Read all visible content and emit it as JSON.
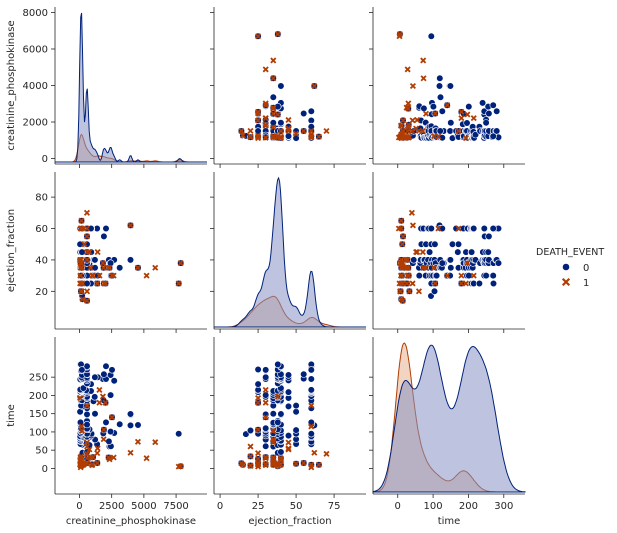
{
  "chart_data": {
    "type": "scatter",
    "subtype": "pairplot",
    "variables": [
      "creatinine_phosphokinase",
      "ejection_fraction",
      "time"
    ],
    "hue": {
      "title": "DEATH_EVENT",
      "levels": [
        {
          "label": "0",
          "marker": "circle",
          "color": "#00227a"
        },
        {
          "label": "1",
          "marker": "x",
          "color": "#b23d02"
        }
      ],
      "legend_position": "right"
    },
    "axes": {
      "creatinine_phosphokinase": {
        "label": "creatinine_phosphokinase",
        "range": [
          -1900,
          9900
        ],
        "ticks": [
          0,
          2500,
          5000,
          7500
        ],
        "diag_ticks": [
          0,
          2000,
          4000,
          6000,
          8000
        ]
      },
      "ejection_fraction": {
        "label": "ejection_fraction",
        "range": [
          -4,
          96
        ],
        "ticks": [
          0,
          25,
          50,
          75
        ],
        "row_ticks": [
          20,
          40,
          60,
          80
        ]
      },
      "time": {
        "label": "time",
        "range": [
          -70,
          360
        ],
        "ticks": [
          0,
          100,
          200,
          300
        ],
        "row_ticks": [
          0,
          50,
          100,
          150,
          200,
          250
        ]
      }
    },
    "grid": false,
    "points_0": [
      [
        582,
        38,
        130
      ],
      [
        7861,
        38,
        6
      ],
      [
        146,
        20,
        7
      ],
      [
        111,
        20,
        7
      ],
      [
        160,
        20,
        8
      ],
      [
        47,
        40,
        10
      ],
      [
        246,
        15,
        10
      ],
      [
        315,
        60,
        10
      ],
      [
        157,
        65,
        10
      ],
      [
        123,
        35,
        10
      ],
      [
        81,
        38,
        10
      ],
      [
        231,
        25,
        10
      ],
      [
        981,
        30,
        11
      ],
      [
        168,
        38,
        11
      ],
      [
        80,
        30,
        12
      ],
      [
        379,
        50,
        13
      ],
      [
        149,
        38,
        14
      ],
      [
        582,
        14,
        14
      ],
      [
        1380,
        25,
        15
      ],
      [
        582,
        55,
        15
      ],
      [
        95,
        35,
        16
      ],
      [
        128,
        35,
        20
      ],
      [
        64,
        40,
        22
      ],
      [
        122,
        40,
        23
      ],
      [
        130,
        25,
        26
      ],
      [
        582,
        40,
        28
      ],
      [
        855,
        35,
        30
      ],
      [
        2261,
        35,
        30
      ],
      [
        73,
        30,
        30
      ],
      [
        1051,
        30,
        31
      ],
      [
        130,
        20,
        33
      ],
      [
        235,
        38,
        43
      ],
      [
        582,
        40,
        45
      ],
      [
        2334,
        35,
        60
      ],
      [
        2442,
        30,
        61
      ],
      [
        776,
        38,
        64
      ],
      [
        196,
        40,
        65
      ],
      [
        1366,
        60,
        66
      ],
      [
        76,
        50,
        67
      ],
      [
        231,
        60,
        73
      ],
      [
        253,
        35,
        74
      ],
      [
        90,
        35,
        74
      ],
      [
        2281,
        40,
        74
      ],
      [
        68,
        40,
        76
      ],
      [
        1211,
        30,
        79
      ],
      [
        103,
        50,
        80
      ],
      [
        61,
        38,
        82
      ],
      [
        129,
        60,
        85
      ],
      [
        198,
        40,
        86
      ],
      [
        835,
        35,
        87
      ],
      [
        582,
        35,
        87
      ],
      [
        59,
        60,
        88
      ],
      [
        246,
        30,
        90
      ],
      [
        910,
        45,
        90
      ],
      [
        157,
        38,
        94
      ],
      [
        212,
        17,
        94
      ],
      [
        7702,
        25,
        95
      ],
      [
        582,
        50,
        95
      ],
      [
        930,
        60,
        95
      ],
      [
        582,
        30,
        95
      ],
      [
        130,
        35,
        96
      ],
      [
        1846,
        35,
        96
      ],
      [
        81,
        35,
        96
      ],
      [
        2695,
        40,
        97
      ],
      [
        166,
        30,
        100
      ],
      [
        2413,
        38,
        101
      ],
      [
        115,
        20,
        104
      ],
      [
        198,
        40,
        104
      ],
      [
        95,
        50,
        105
      ],
      [
        1896,
        25,
        106
      ],
      [
        776,
        38,
        107
      ],
      [
        582,
        30,
        107
      ],
      [
        104,
        35,
        108
      ],
      [
        582,
        35,
        109
      ],
      [
        128,
        30,
        110
      ],
      [
        3964,
        62,
        118
      ],
      [
        4540,
        35,
        119
      ],
      [
        582,
        40,
        120
      ],
      [
        3119,
        35,
        121
      ],
      [
        67,
        60,
        121
      ],
      [
        59,
        35,
        125
      ],
      [
        80,
        38,
        126
      ],
      [
        2060,
        60,
        126
      ],
      [
        2522,
        30,
        140
      ],
      [
        582,
        40,
        147
      ],
      [
        3966,
        40,
        147
      ],
      [
        582,
        30,
        148
      ],
      [
        3964,
        40,
        149
      ],
      [
        1202,
        35,
        150
      ],
      [
        47,
        50,
        155
      ],
      [
        582,
        60,
        165
      ],
      [
        249,
        45,
        170
      ],
      [
        130,
        35,
        172
      ],
      [
        582,
        50,
        172
      ],
      [
        2017,
        25,
        180
      ],
      [
        1088,
        40,
        184
      ],
      [
        582,
        38,
        185
      ],
      [
        118,
        60,
        186
      ],
      [
        582,
        40,
        186
      ],
      [
        1876,
        35,
        187
      ],
      [
        197,
        38,
        187
      ],
      [
        582,
        35,
        192
      ],
      [
        582,
        45,
        193
      ],
      [
        47,
        38,
        195
      ],
      [
        1185,
        40,
        196
      ],
      [
        582,
        30,
        196
      ],
      [
        148,
        38,
        197
      ],
      [
        60,
        60,
        198
      ],
      [
        220,
        35,
        201
      ],
      [
        2413,
        38,
        201
      ],
      [
        144,
        30,
        201
      ],
      [
        96,
        60,
        206
      ],
      [
        582,
        35,
        207
      ],
      [
        193,
        60,
        207
      ],
      [
        211,
        38,
        207
      ],
      [
        115,
        45,
        208
      ],
      [
        84,
        40,
        208
      ],
      [
        115,
        25,
        209
      ],
      [
        66,
        45,
        209
      ],
      [
        66,
        60,
        210
      ],
      [
        582,
        40,
        211
      ],
      [
        897,
        60,
        212
      ],
      [
        154,
        35,
        212
      ],
      [
        144,
        38,
        213
      ],
      [
        133,
        60,
        214
      ],
      [
        514,
        25,
        214
      ],
      [
        59,
        60,
        215
      ],
      [
        156,
        25,
        215
      ],
      [
        61,
        40,
        216
      ],
      [
        305,
        40,
        220
      ],
      [
        898,
        25,
        231
      ],
      [
        582,
        38,
        233
      ],
      [
        2695,
        40,
        240
      ],
      [
        582,
        45,
        241
      ],
      [
        213,
        38,
        244
      ],
      [
        64,
        40,
        244
      ],
      [
        257,
        30,
        245
      ],
      [
        582,
        40,
        245
      ],
      [
        1820,
        38,
        245
      ],
      [
        2060,
        60,
        245
      ],
      [
        185,
        40,
        246
      ],
      [
        232,
        38,
        246
      ],
      [
        582,
        55,
        246
      ],
      [
        167,
        45,
        250
      ],
      [
        582,
        38,
        250
      ],
      [
        1419,
        30,
        250
      ],
      [
        1199,
        40,
        250
      ],
      [
        192,
        45,
        256
      ],
      [
        2413,
        38,
        256
      ],
      [
        196,
        45,
        256
      ],
      [
        615,
        38,
        257
      ],
      [
        1896,
        55,
        258
      ],
      [
        582,
        40,
        258
      ],
      [
        123,
        30,
        268
      ],
      [
        2522,
        30,
        270
      ],
      [
        582,
        25,
        271
      ],
      [
        582,
        38,
        271
      ],
      [
        582,
        40,
        278
      ],
      [
        2060,
        60,
        280
      ],
      [
        582,
        40,
        280
      ],
      [
        64,
        60,
        285
      ],
      [
        115,
        38,
        285
      ],
      [
        185,
        60,
        270
      ]
    ],
    "points_1": [
      [
        7861,
        38,
        6
      ],
      [
        146,
        20,
        7
      ],
      [
        111,
        20,
        7
      ],
      [
        160,
        20,
        8
      ],
      [
        47,
        40,
        10
      ],
      [
        246,
        15,
        10
      ],
      [
        315,
        60,
        10
      ],
      [
        157,
        65,
        10
      ],
      [
        123,
        35,
        10
      ],
      [
        81,
        38,
        10
      ],
      [
        231,
        25,
        10
      ],
      [
        981,
        30,
        11
      ],
      [
        168,
        38,
        11
      ],
      [
        80,
        30,
        12
      ],
      [
        379,
        50,
        13
      ],
      [
        149,
        38,
        14
      ],
      [
        582,
        14,
        14
      ],
      [
        1380,
        25,
        15
      ],
      [
        582,
        55,
        15
      ],
      [
        95,
        35,
        16
      ],
      [
        128,
        35,
        20
      ],
      [
        64,
        40,
        22
      ],
      [
        122,
        40,
        23
      ],
      [
        130,
        25,
        26
      ],
      [
        582,
        40,
        28
      ],
      [
        855,
        35,
        30
      ],
      [
        2261,
        35,
        30
      ],
      [
        73,
        30,
        30
      ],
      [
        1051,
        30,
        31
      ],
      [
        130,
        20,
        33
      ],
      [
        7702,
        25,
        5
      ],
      [
        582,
        70,
        40
      ],
      [
        1380,
        25,
        42
      ],
      [
        3964,
        62,
        43
      ],
      [
        5209,
        30,
        28
      ],
      [
        4540,
        35,
        73
      ],
      [
        2656,
        30,
        30
      ],
      [
        590,
        20,
        60
      ],
      [
        1876,
        35,
        80
      ],
      [
        770,
        45,
        52
      ],
      [
        5882,
        35,
        72
      ],
      [
        2334,
        35,
        25
      ],
      [
        582,
        45,
        71
      ],
      [
        1896,
        25,
        106
      ],
      [
        1548,
        30,
        215
      ],
      [
        1820,
        38,
        197
      ],
      [
        1548,
        30,
        180
      ],
      [
        2522,
        30,
        140
      ],
      [
        160,
        60,
        115
      ],
      [
        47,
        25,
        193
      ],
      [
        2017,
        25,
        180
      ],
      [
        582,
        60,
        172
      ],
      [
        1410,
        45,
        55
      ],
      [
        981,
        30,
        9
      ],
      [
        92,
        60,
        3
      ],
      [
        198,
        35,
        103
      ]
    ]
  }
}
